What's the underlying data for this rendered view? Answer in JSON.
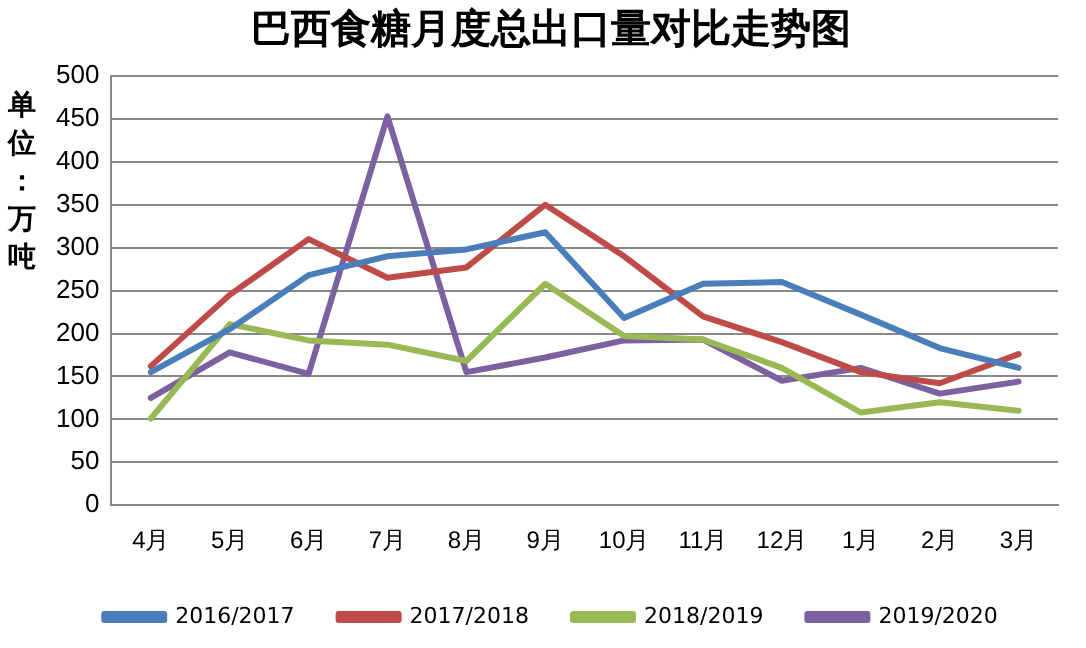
{
  "chart_data": {
    "type": "line",
    "title": "巴西食糖月度总出口量对比走势图",
    "ylabel": "单位：万吨",
    "categories": [
      "4月",
      "5月",
      "6月",
      "7月",
      "8月",
      "9月",
      "10月",
      "11月",
      "12月",
      "1月",
      "2月",
      "3月"
    ],
    "series": [
      {
        "name": "2016/2017",
        "color": "#4a7ebb",
        "values": [
          155,
          205,
          268,
          290,
          298,
          318,
          218,
          258,
          260,
          222,
          183,
          160
        ]
      },
      {
        "name": "2017/2018",
        "color": "#be4b48",
        "values": [
          162,
          245,
          310,
          265,
          277,
          350,
          290,
          220,
          190,
          155,
          142,
          176
        ]
      },
      {
        "name": "2018/2019",
        "color": "#98b954",
        "values": [
          101,
          211,
          192,
          187,
          168,
          258,
          197,
          193,
          160,
          108,
          120,
          110
        ]
      },
      {
        "name": "2019/2020",
        "color": "#7d60a0",
        "values": [
          125,
          178,
          153,
          453,
          155,
          172,
          192,
          193,
          145,
          160,
          130,
          144
        ]
      }
    ],
    "ylim": [
      0,
      500
    ],
    "yticks": [
      0,
      50,
      100,
      150,
      200,
      250,
      300,
      350,
      400,
      450,
      500
    ],
    "grid": "y",
    "legend": "bottom",
    "marker": "none",
    "line_style": "solid"
  }
}
